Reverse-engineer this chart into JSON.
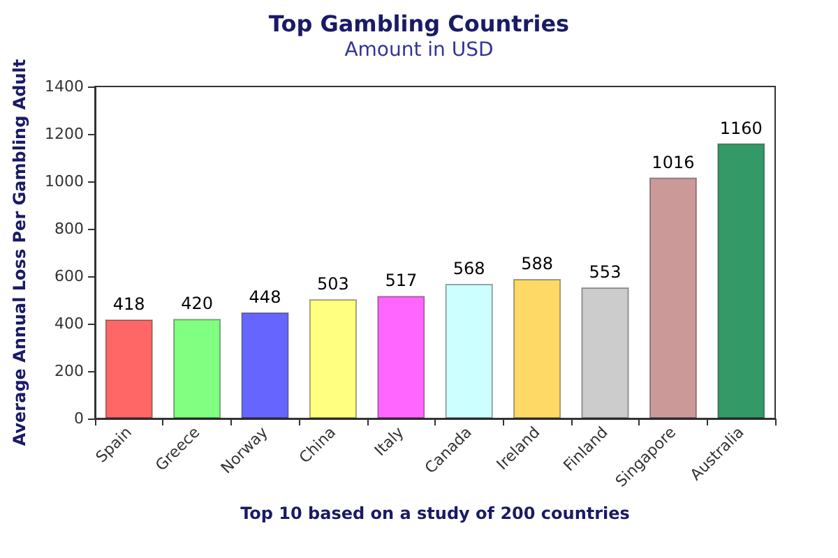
{
  "chart_data": {
    "type": "bar",
    "title": "Top Gambling Countries",
    "subtitle": "Amount in USD",
    "xlabel": "Top 10 based on a study of 200 countries",
    "ylabel": "Average Annual Loss Per Gambling Adult",
    "categories": [
      "Spain",
      "Greece",
      "Norway",
      "China",
      "Italy",
      "Canada",
      "Ireland",
      "Finland",
      "Singapore",
      "Australia"
    ],
    "values": [
      418,
      420,
      448,
      503,
      517,
      568,
      588,
      553,
      1016,
      1160
    ],
    "colors": [
      "#ff6666",
      "#80ff80",
      "#6666ff",
      "#ffff80",
      "#ff66ff",
      "#ccffff",
      "#ffd966",
      "#cccccc",
      "#cc9999",
      "#339966"
    ],
    "ylim": [
      0,
      1400
    ],
    "yticks": [
      0,
      200,
      400,
      600,
      800,
      1000,
      1200,
      1400
    ],
    "grid": false,
    "data_labels": true
  }
}
